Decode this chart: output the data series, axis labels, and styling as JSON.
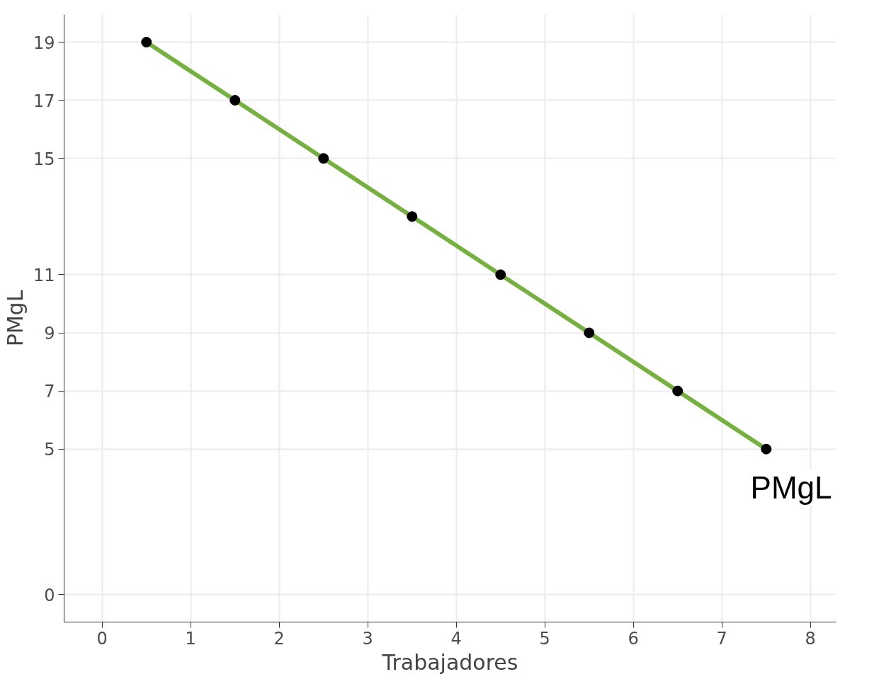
{
  "chart_data": {
    "type": "line",
    "xlabel": "Trabajadores",
    "ylabel": "PMgL",
    "x": [
      0.5,
      1.5,
      2.5,
      3.5,
      4.5,
      5.5,
      6.5,
      7.5
    ],
    "series": [
      {
        "color": "#76b041",
        "values": [
          19,
          17,
          15,
          13,
          11,
          9,
          7,
          5
        ]
      }
    ],
    "marker": "circle",
    "line_style": "solid",
    "grid": true,
    "xlim": [
      -0.43,
      8.29
    ],
    "xticks": [
      0,
      1,
      2,
      3,
      4,
      5,
      6,
      7,
      8
    ],
    "ylim": [
      -0.95,
      19.95
    ],
    "yticks": [
      0,
      5,
      7,
      9,
      11,
      15,
      17,
      19
    ],
    "annotations": [
      "PMgL"
    ]
  }
}
